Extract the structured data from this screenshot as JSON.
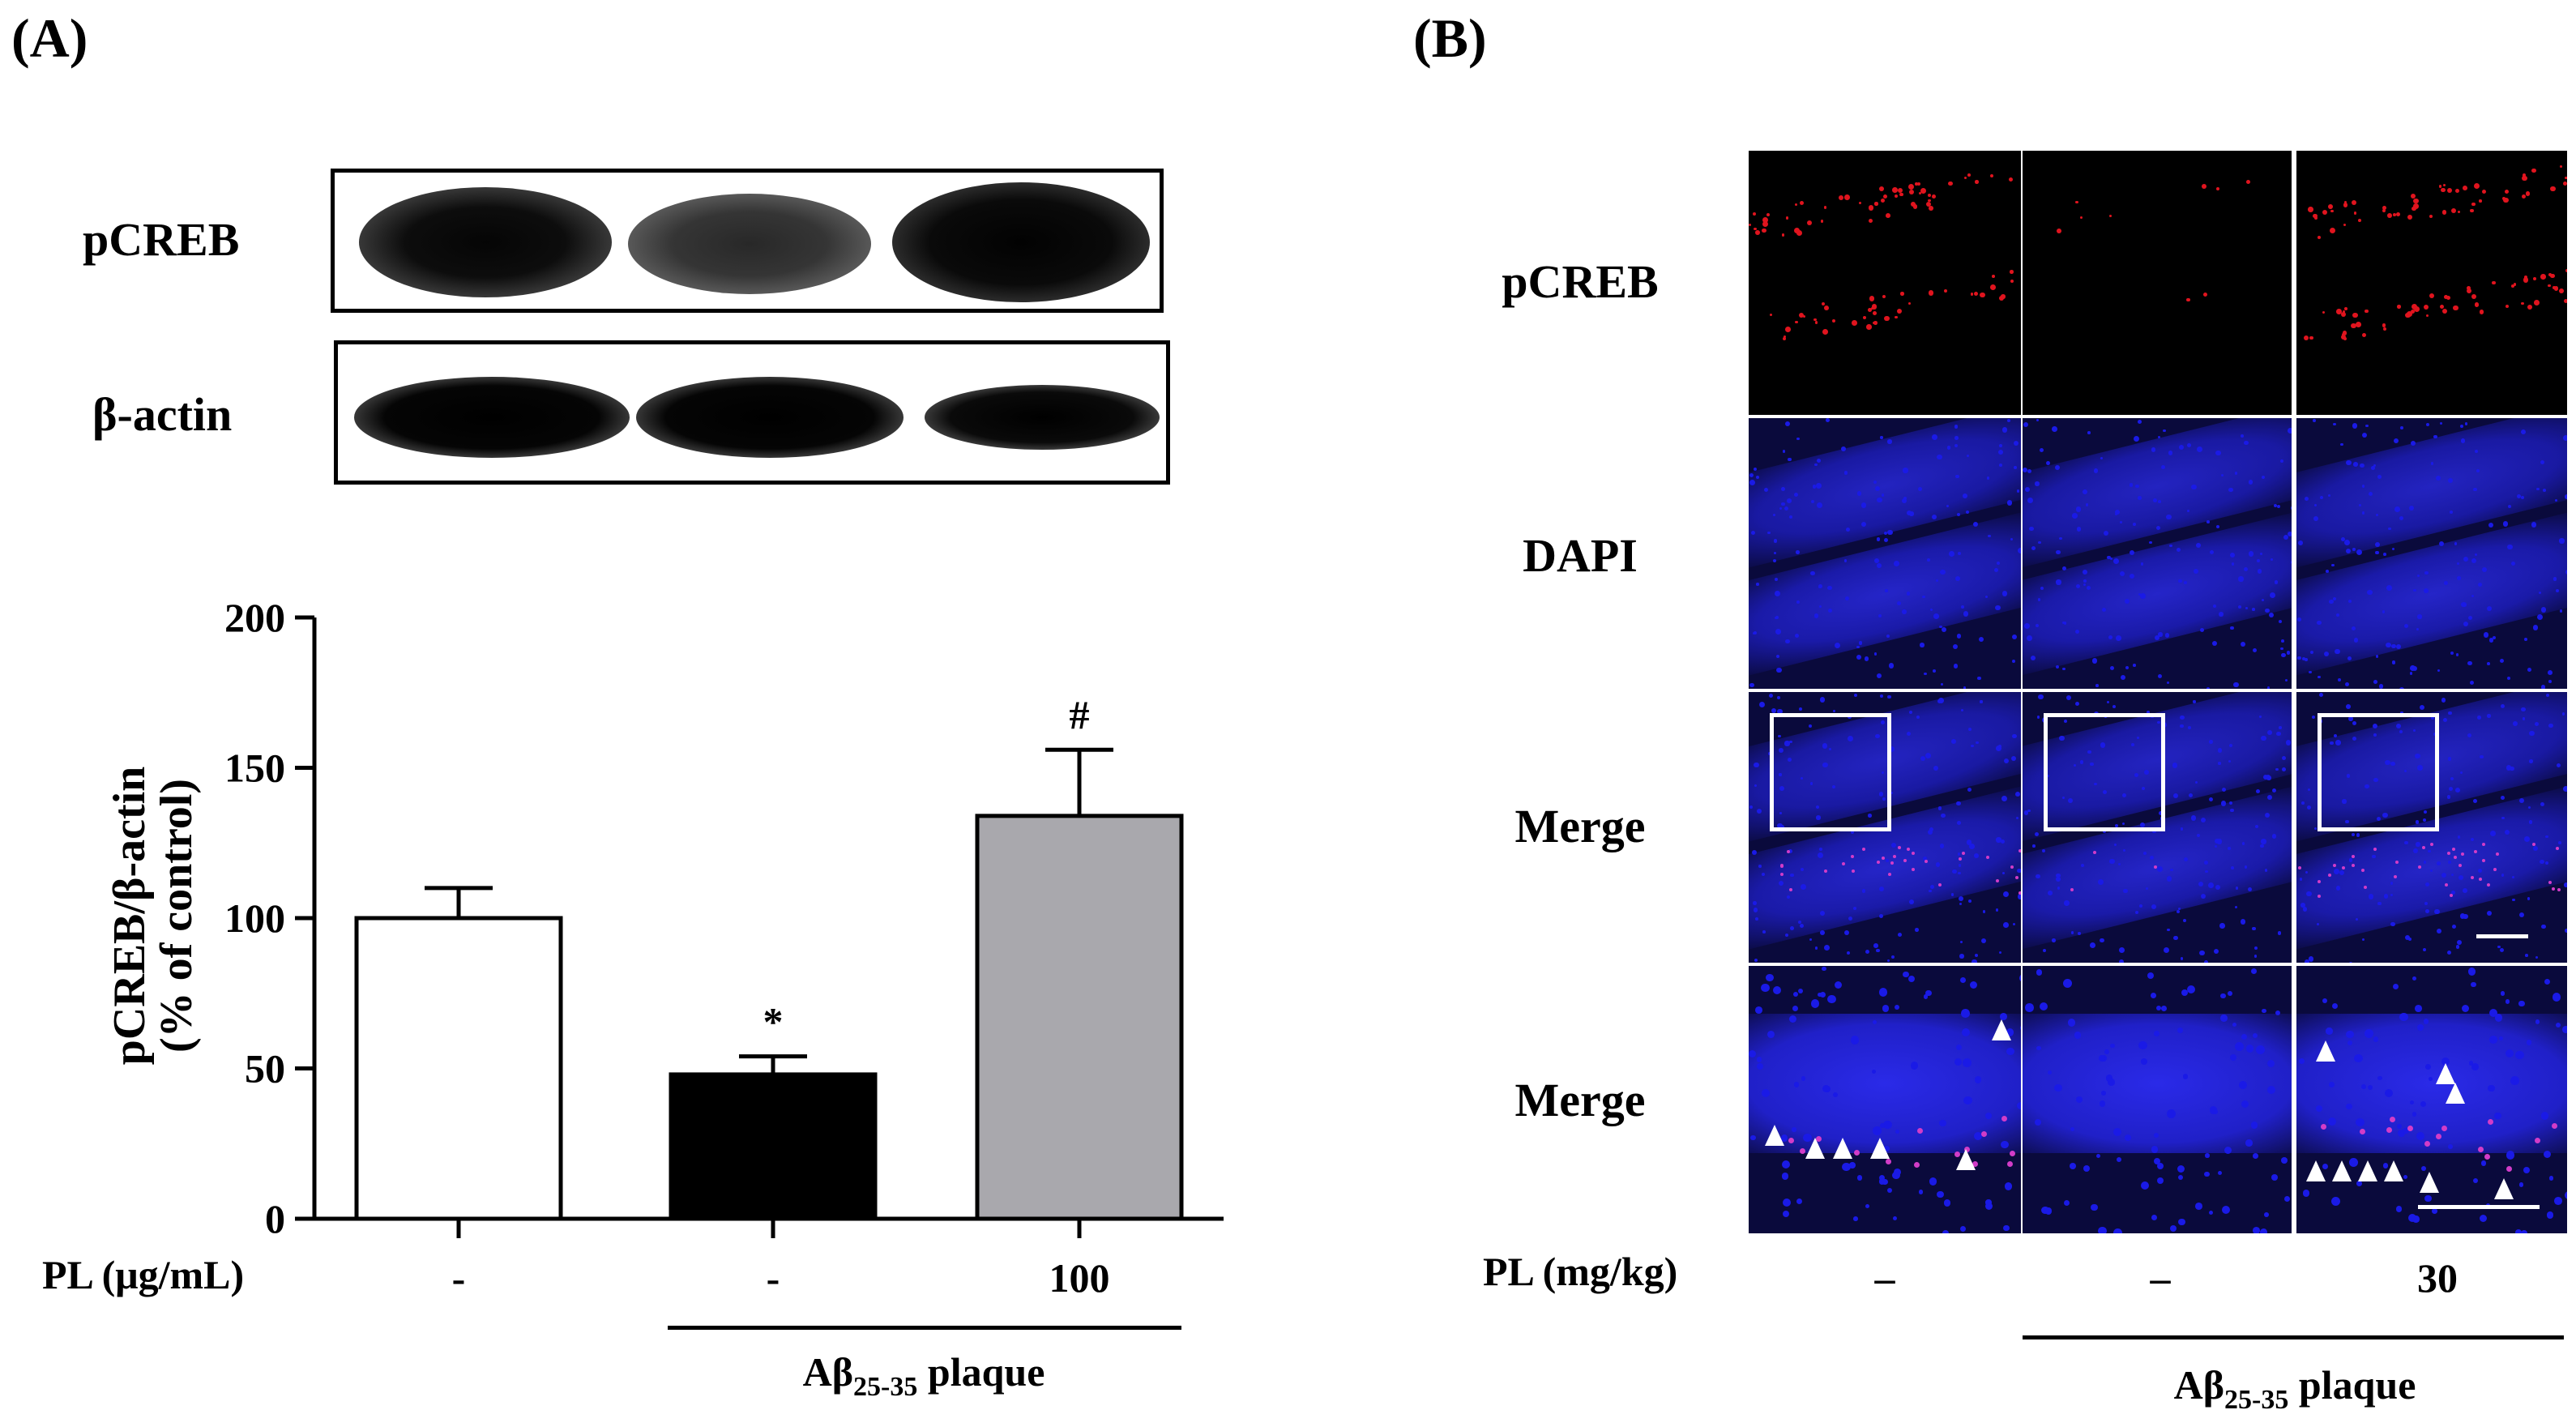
{
  "panel_a": {
    "letter": "(A)",
    "blot_labels": [
      "pCREB",
      "β-actin"
    ],
    "treatment_label": "PL (μg/mL)",
    "doses": [
      "-",
      "-",
      "100"
    ],
    "group_label_main": "Aβ",
    "group_label_sub": "25-35",
    "group_label_tail": " plaque"
  },
  "panel_b": {
    "letter": "(B)",
    "row_labels": [
      "pCREB",
      "DAPI",
      "Merge",
      "Merge"
    ],
    "treatment_label": "PL (mg/kg)",
    "doses": [
      "–",
      "–",
      "30"
    ],
    "group_label_main": "Aβ",
    "group_label_sub": "25-35",
    "group_label_tail": " plaque",
    "colors": {
      "pcreb_signal": "#e0141e",
      "dapi_signal": "#1a1ae6",
      "merge_signal": "#d23cc8",
      "background": "#000000"
    }
  },
  "chart_data": {
    "type": "bar",
    "categories": [
      "-",
      "-",
      "100"
    ],
    "values": [
      100,
      48,
      134
    ],
    "errors": [
      10,
      6,
      22
    ],
    "bar_colors": [
      "#ffffff",
      "#000000",
      "#a9a8ad"
    ],
    "annotations": [
      "",
      "*",
      "#"
    ],
    "ylabel": "pCREB/β-actin",
    "ylabel2": "(% of control)",
    "ylim": [
      0,
      200
    ],
    "yticks": [
      "0",
      "50",
      "100",
      "150",
      "200"
    ]
  }
}
